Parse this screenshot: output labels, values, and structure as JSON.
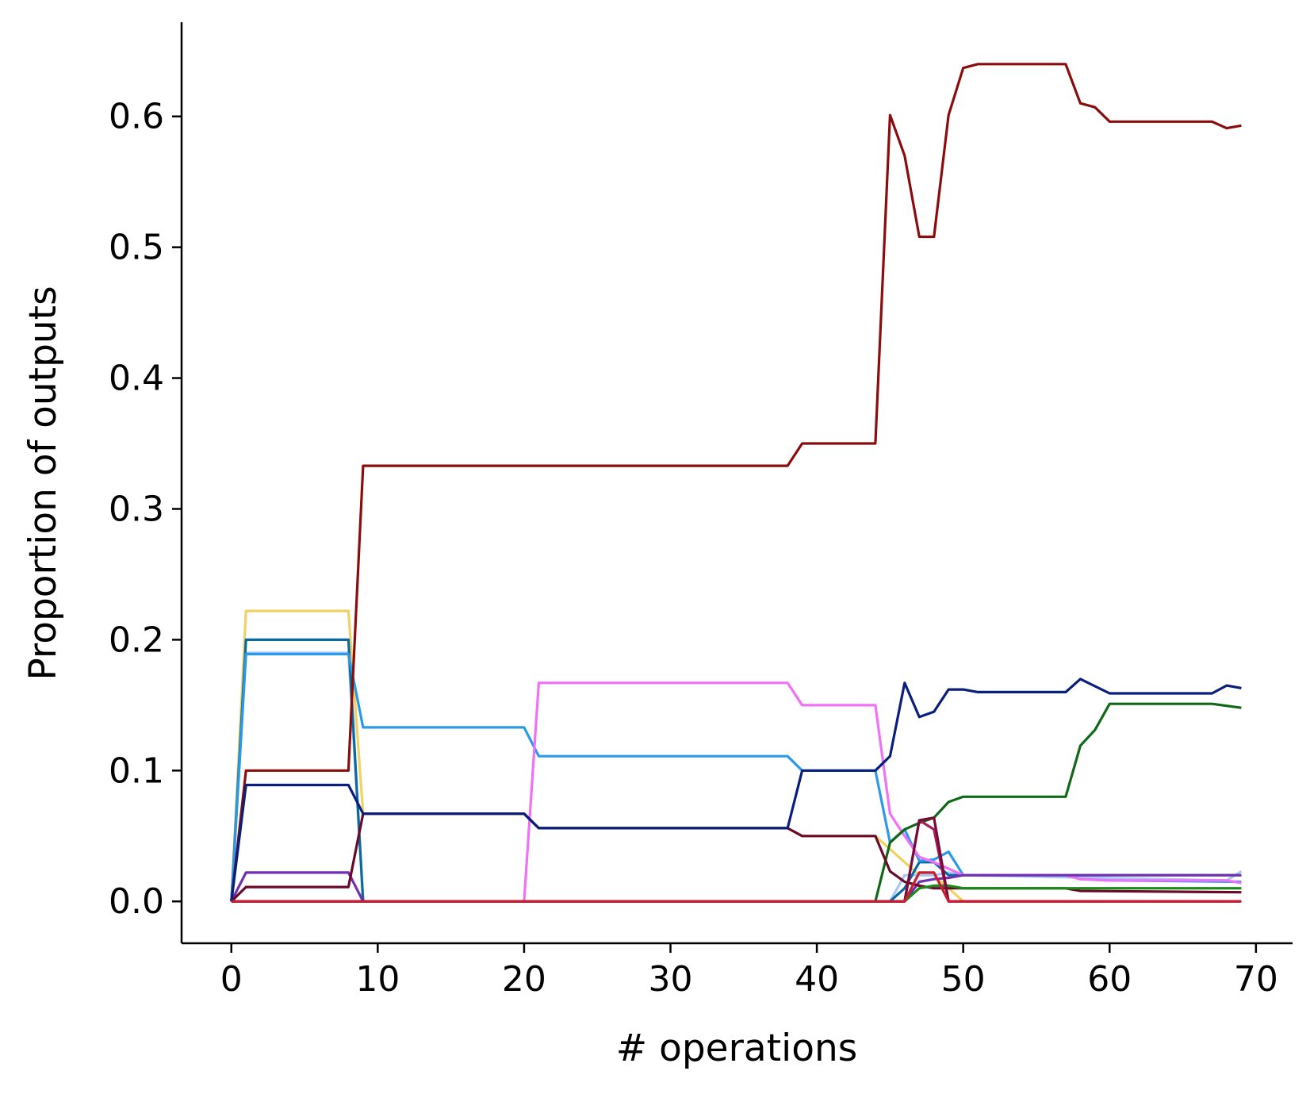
{
  "chart_data": {
    "type": "line",
    "xlabel": "# operations",
    "ylabel": "Proportion of outputs",
    "xlim": [
      -3.4,
      72.5
    ],
    "ylim": [
      -0.032,
      0.672
    ],
    "xticks": [
      0,
      10,
      20,
      30,
      40,
      50,
      60,
      70
    ],
    "xtick_labels": [
      "0",
      "10",
      "20",
      "30",
      "40",
      "50",
      "60",
      "70"
    ],
    "yticks": [
      0.0,
      0.1,
      0.2,
      0.3,
      0.4,
      0.5,
      0.6
    ],
    "ytick_labels": [
      "0.0",
      "0.1",
      "0.2",
      "0.3",
      "0.4",
      "0.5",
      "0.6"
    ],
    "grid": false,
    "series": [
      {
        "color": "#f0d264",
        "points": [
          [
            0,
            0
          ],
          [
            1,
            0.222
          ],
          [
            8,
            0.222
          ],
          [
            9,
            0.067
          ],
          [
            20,
            0.067
          ],
          [
            21,
            0.056
          ],
          [
            38,
            0.056
          ],
          [
            39,
            0.05
          ],
          [
            44,
            0.05
          ],
          [
            45,
            0.04
          ],
          [
            46,
            0.03
          ],
          [
            47,
            0.02
          ],
          [
            48,
            0.02
          ],
          [
            49,
            0.01
          ],
          [
            50,
            0
          ],
          [
            69,
            0
          ]
        ]
      },
      {
        "color": "#a8c8f8",
        "points": [
          [
            0,
            0
          ],
          [
            1,
            0.19
          ],
          [
            8,
            0.19
          ],
          [
            9,
            0
          ],
          [
            45,
            0
          ],
          [
            46,
            0.02
          ],
          [
            47,
            0.02
          ],
          [
            48,
            0.02
          ],
          [
            49,
            0.022
          ],
          [
            50,
            0.02
          ],
          [
            68,
            0.016
          ],
          [
            69,
            0.023
          ]
        ]
      },
      {
        "color": "#0a6aa0",
        "points": [
          [
            0,
            0
          ],
          [
            1,
            0.2
          ],
          [
            8,
            0.2
          ],
          [
            9,
            0
          ],
          [
            45,
            0
          ],
          [
            46,
            0.01
          ],
          [
            47,
            0.03
          ],
          [
            48,
            0.03
          ],
          [
            49,
            0.02
          ],
          [
            50,
            0.02
          ],
          [
            69,
            0.02
          ]
        ]
      },
      {
        "color": "#2a9ae8",
        "points": [
          [
            0,
            0
          ],
          [
            1,
            0.189
          ],
          [
            8,
            0.189
          ],
          [
            9,
            0.133
          ],
          [
            20,
            0.133
          ],
          [
            21,
            0.111
          ],
          [
            38,
            0.111
          ],
          [
            39,
            0.1
          ],
          [
            44,
            0.1
          ],
          [
            45,
            0.045
          ],
          [
            46,
            0.055
          ],
          [
            47,
            0.031
          ],
          [
            48,
            0.032
          ],
          [
            49,
            0.038
          ],
          [
            50,
            0.02
          ],
          [
            57,
            0.02
          ],
          [
            58,
            0.017
          ],
          [
            60,
            0.016
          ],
          [
            69,
            0.015
          ]
        ]
      },
      {
        "color": "#f070f8",
        "points": [
          [
            0,
            0
          ],
          [
            20,
            0
          ],
          [
            21,
            0.167
          ],
          [
            38,
            0.167
          ],
          [
            39,
            0.15
          ],
          [
            44,
            0.15
          ],
          [
            45,
            0.067
          ],
          [
            46,
            0.05
          ],
          [
            47,
            0.034
          ],
          [
            48,
            0.03
          ],
          [
            49,
            0.025
          ],
          [
            50,
            0.02
          ],
          [
            57,
            0.02
          ],
          [
            58,
            0.017
          ],
          [
            60,
            0.016
          ],
          [
            67,
            0.016
          ],
          [
            68,
            0.016
          ],
          [
            69,
            0.014
          ]
        ]
      },
      {
        "color": "#7030b0",
        "points": [
          [
            0,
            0
          ],
          [
            1,
            0.022
          ],
          [
            8,
            0.022
          ],
          [
            9,
            0
          ],
          [
            46,
            0
          ],
          [
            47,
            0.015
          ],
          [
            48,
            0.017
          ],
          [
            49,
            0.018
          ],
          [
            50,
            0.02
          ],
          [
            69,
            0.02
          ]
        ]
      },
      {
        "color": "#106818",
        "points": [
          [
            0,
            0
          ],
          [
            44,
            0
          ],
          [
            45,
            0.045
          ],
          [
            46,
            0.055
          ],
          [
            47,
            0.06
          ],
          [
            48,
            0.064
          ],
          [
            49,
            0.076
          ],
          [
            50,
            0.08
          ],
          [
            51,
            0.08
          ],
          [
            57,
            0.08
          ],
          [
            58,
            0.119
          ],
          [
            59,
            0.131
          ],
          [
            60,
            0.151
          ],
          [
            67,
            0.151
          ],
          [
            69,
            0.148
          ]
        ]
      },
      {
        "color": "#8a0c0c",
        "points": [
          [
            0,
            0
          ],
          [
            1,
            0.1
          ],
          [
            8,
            0.1
          ],
          [
            9,
            0.333
          ],
          [
            38,
            0.333
          ],
          [
            39,
            0.35
          ],
          [
            44,
            0.35
          ],
          [
            45,
            0.601
          ],
          [
            46,
            0.57
          ],
          [
            47,
            0.508
          ],
          [
            48,
            0.508
          ],
          [
            49,
            0.601
          ],
          [
            50,
            0.637
          ],
          [
            51,
            0.64
          ],
          [
            57,
            0.64
          ],
          [
            58,
            0.61
          ],
          [
            59,
            0.607
          ],
          [
            60,
            0.596
          ],
          [
            67,
            0.596
          ],
          [
            68,
            0.591
          ],
          [
            69,
            0.593
          ]
        ]
      },
      {
        "color": "#6a0a28",
        "points": [
          [
            0,
            0
          ],
          [
            1,
            0.011
          ],
          [
            8,
            0.011
          ],
          [
            9,
            0.067
          ],
          [
            20,
            0.067
          ],
          [
            21,
            0.056
          ],
          [
            38,
            0.056
          ],
          [
            39,
            0.05
          ],
          [
            44,
            0.05
          ],
          [
            45,
            0.023
          ],
          [
            46,
            0.015
          ],
          [
            47,
            0.012
          ],
          [
            48,
            0.01
          ],
          [
            49,
            0.01
          ],
          [
            57,
            0.01
          ],
          [
            58,
            0.008
          ],
          [
            69,
            0.007
          ]
        ]
      },
      {
        "color": "#1a8a1a",
        "points": [
          [
            0,
            0
          ],
          [
            46,
            0
          ],
          [
            47,
            0.01
          ],
          [
            48,
            0.012
          ],
          [
            49,
            0.012
          ],
          [
            50,
            0.01
          ],
          [
            69,
            0.01
          ]
        ]
      },
      {
        "color": "#a81c5c",
        "points": [
          [
            0,
            0
          ],
          [
            46,
            0
          ],
          [
            47,
            0.062
          ],
          [
            48,
            0.055
          ],
          [
            49,
            0
          ],
          [
            69,
            0
          ]
        ]
      },
      {
        "color": "#0a1e7c",
        "points": [
          [
            0,
            0
          ],
          [
            1,
            0.089
          ],
          [
            8,
            0.089
          ],
          [
            9,
            0.067
          ],
          [
            20,
            0.067
          ],
          [
            21,
            0.056
          ],
          [
            38,
            0.056
          ],
          [
            39,
            0.1
          ],
          [
            44,
            0.1
          ],
          [
            45,
            0.111
          ],
          [
            46,
            0.167
          ],
          [
            47,
            0.141
          ],
          [
            48,
            0.145
          ],
          [
            49,
            0.162
          ],
          [
            50,
            0.162
          ],
          [
            51,
            0.16
          ],
          [
            57,
            0.16
          ],
          [
            58,
            0.17
          ],
          [
            60,
            0.159
          ],
          [
            67,
            0.159
          ],
          [
            68,
            0.165
          ],
          [
            69,
            0.163
          ]
        ]
      },
      {
        "color": "#7a0a38",
        "points": [
          [
            0,
            0
          ],
          [
            46,
            0
          ],
          [
            47,
            0.062
          ],
          [
            48,
            0.064
          ],
          [
            49,
            0
          ],
          [
            69,
            0
          ]
        ]
      },
      {
        "color": "#c81e32",
        "points": [
          [
            0,
            0
          ],
          [
            46,
            0
          ],
          [
            47,
            0.022
          ],
          [
            48,
            0.022
          ],
          [
            49,
            0
          ],
          [
            69,
            0
          ]
        ]
      }
    ]
  }
}
